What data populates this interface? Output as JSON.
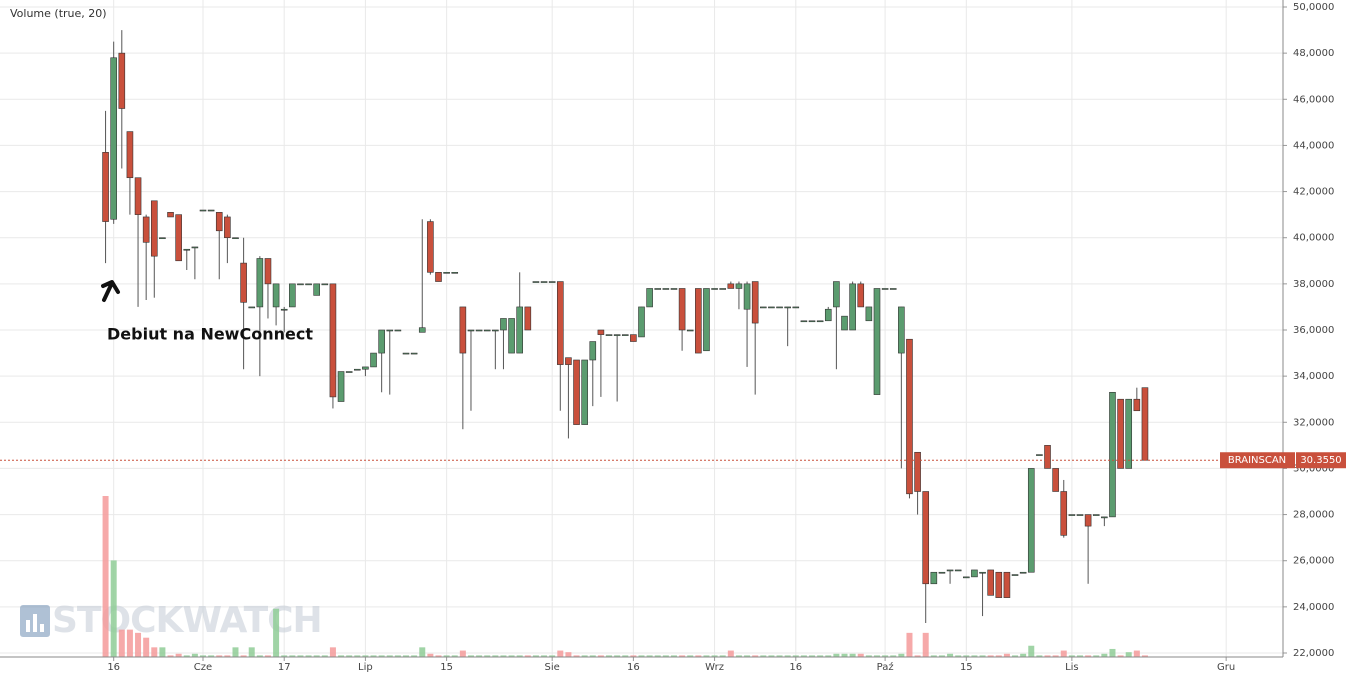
{
  "chart_data": {
    "type": "candlestick",
    "indicator_label": "Volume (true, 20)",
    "annotation": "Debiut na NewConnect",
    "watermark": "STOCKWATCH",
    "price_label": {
      "name": "BRAINSCAN",
      "value": 30.355,
      "label": "30.3550"
    },
    "up_color": "#5b9c6f",
    "down_color": "#c9503c",
    "volume_up_color": "#8fcc97",
    "volume_down_color": "#f59a9a",
    "grid": true,
    "xlim": [
      -13,
      145
    ],
    "ylim": [
      22,
      50
    ],
    "vlim": [
      0,
      100
    ],
    "xticks": [
      {
        "value": 1,
        "label": "16"
      },
      {
        "value": 12,
        "label": "Cze"
      },
      {
        "value": 22,
        "label": "17"
      },
      {
        "value": 32,
        "label": "Lip"
      },
      {
        "value": 42,
        "label": "15"
      },
      {
        "value": 55,
        "label": "Sie"
      },
      {
        "value": 65,
        "label": "16"
      },
      {
        "value": 75,
        "label": "Wrz"
      },
      {
        "value": 85,
        "label": "16"
      },
      {
        "value": 96,
        "label": "Paź"
      },
      {
        "value": 106,
        "label": "15"
      },
      {
        "value": 119,
        "label": "Lis"
      },
      {
        "value": 138,
        "label": "Gru"
      }
    ],
    "yticks": [
      {
        "value": 22,
        "label": "22,0000"
      },
      {
        "value": 24,
        "label": "24,0000"
      },
      {
        "value": 26,
        "label": "26,0000"
      },
      {
        "value": 28,
        "label": "28,0000"
      },
      {
        "value": 30,
        "label": "30,0000"
      },
      {
        "value": 32,
        "label": "32,0000"
      },
      {
        "value": 34,
        "label": "34,0000"
      },
      {
        "value": 36,
        "label": "36,0000"
      },
      {
        "value": 38,
        "label": "38,0000"
      },
      {
        "value": 40,
        "label": "40,0000"
      },
      {
        "value": 42,
        "label": "42,0000"
      },
      {
        "value": 44,
        "label": "44,0000"
      },
      {
        "value": 46,
        "label": "46,0000"
      },
      {
        "value": 48,
        "label": "48,0000"
      },
      {
        "value": 50,
        "label": "50,0000"
      }
    ],
    "x": [
      0,
      1,
      2,
      3,
      4,
      5,
      6,
      7,
      8,
      9,
      10,
      11,
      12,
      13,
      14,
      15,
      16,
      17,
      18,
      19,
      20,
      21,
      22,
      23,
      24,
      25,
      26,
      27,
      28,
      29,
      30,
      31,
      32,
      33,
      34,
      35,
      36,
      37,
      38,
      39,
      40,
      41,
      42,
      43,
      44,
      45,
      46,
      47,
      48,
      49,
      50,
      51,
      52,
      53,
      54,
      55,
      56,
      57,
      58,
      59,
      60,
      61,
      62,
      63,
      64,
      65,
      66,
      67,
      68,
      69,
      70,
      71,
      72,
      73,
      74,
      75,
      76,
      77,
      78,
      79,
      80,
      81,
      82,
      83,
      84,
      85,
      86,
      87,
      88,
      89,
      90,
      91,
      92,
      93,
      94,
      95,
      96,
      97,
      98,
      99,
      100,
      101,
      102,
      103,
      104,
      105,
      106,
      107,
      108,
      109,
      110,
      111,
      112,
      113,
      114,
      115,
      116,
      117,
      118,
      119,
      120,
      121,
      122,
      123,
      124,
      125,
      126,
      127,
      128
    ],
    "open": [
      43.7,
      40.8,
      48.0,
      44.6,
      42.6,
      40.9,
      41.6,
      40,
      41.1,
      41.0,
      39.5,
      39.6,
      41.2,
      41.2,
      41.1,
      40.9,
      40,
      38.9,
      37.0,
      37.0,
      39.1,
      37.0,
      36.9,
      37.0,
      38.0,
      38.0,
      37.5,
      38.0,
      38.0,
      32.9,
      34.2,
      34.3,
      34.3,
      34.4,
      35.0,
      36.0,
      36.0,
      35.0,
      35.0,
      35.9,
      40.7,
      38.5,
      38.5,
      38.5,
      37.0,
      36.0,
      36.0,
      36.0,
      36.0,
      36.0,
      35.0,
      35.0,
      37.0,
      38.1,
      38.1,
      38.1,
      38.1,
      34.8,
      34.7,
      31.9,
      34.7,
      36.0,
      35.8,
      35.8,
      35.8,
      35.8,
      35.7,
      37.0,
      37.8,
      37.8,
      37.8,
      37.8,
      36.0,
      37.8,
      35.1,
      37.8,
      37.8,
      38.0,
      37.8,
      36.9,
      38.1,
      37.0,
      37.0,
      37.0,
      37.0,
      37.0,
      36.4,
      36.4,
      36.4,
      36.4,
      37.0,
      36.0,
      36.0,
      38.0,
      36.4,
      33.2,
      37.8,
      37.8,
      35.0,
      35.6,
      30.7,
      29.0,
      25.0,
      25.5,
      25.6,
      25.6,
      25.3,
      25.3,
      25.5,
      25.6,
      25.5,
      25.5,
      25.4,
      25.5,
      25.5,
      30.6,
      31.0,
      30.0,
      29.0,
      28.0,
      28.0,
      28.0,
      28.0,
      27.9,
      27.9,
      33.0,
      30.0,
      33.0,
      33.5
    ],
    "high": [
      45.5,
      48.5,
      49.0,
      44.6,
      42.6,
      41.0,
      41.6,
      40,
      41.1,
      41.0,
      39.5,
      39.6,
      41.2,
      41.2,
      41.1,
      41.0,
      40,
      40.0,
      37.0,
      39.2,
      39.1,
      38.0,
      37.0,
      38.0,
      38.0,
      38.0,
      38.0,
      38.0,
      38.0,
      34.2,
      34.2,
      34.3,
      34.4,
      35.0,
      36.0,
      36.0,
      36.0,
      35.0,
      35.0,
      40.8,
      40.8,
      38.5,
      38.5,
      38.5,
      37.0,
      36.0,
      36.0,
      36.0,
      36.0,
      36.5,
      36.5,
      38.5,
      37.0,
      38.1,
      38.1,
      38.1,
      38.1,
      34.8,
      34.7,
      34.7,
      35.5,
      36.0,
      35.8,
      35.8,
      35.8,
      35.8,
      37.0,
      37.8,
      37.8,
      37.8,
      37.8,
      37.8,
      36.0,
      37.8,
      37.8,
      37.8,
      37.8,
      38.1,
      38.1,
      38.1,
      38.1,
      37.0,
      37.0,
      37.0,
      37.0,
      37.0,
      36.4,
      36.4,
      36.4,
      37.0,
      38.1,
      36.6,
      38.1,
      38.1,
      37.0,
      37.8,
      37.8,
      37.8,
      37.0,
      35.6,
      30.7,
      29.0,
      25.5,
      25.5,
      25.6,
      25.6,
      25.3,
      25.6,
      25.5,
      25.6,
      25.5,
      25.5,
      25.4,
      25.5,
      30.0,
      30.6,
      31.0,
      30.0,
      29.5,
      28.0,
      28.0,
      28.0,
      28.0,
      27.9,
      33.3,
      33.0,
      33.0,
      33.5,
      33.5
    ],
    "low": [
      38.9,
      40.6,
      43.0,
      41.0,
      37.0,
      37.3,
      37.4,
      40,
      40.9,
      39.0,
      38.6,
      38.2,
      41.2,
      41.2,
      38.2,
      38.9,
      40,
      34.3,
      37.0,
      34.0,
      36.5,
      36.2,
      35.9,
      37.0,
      38.0,
      38.0,
      37.5,
      38.0,
      32.6,
      32.9,
      34.2,
      34.3,
      34.0,
      34.4,
      33.3,
      33.2,
      36.0,
      35.0,
      35.0,
      35.9,
      38.4,
      38.1,
      38.5,
      38.5,
      31.7,
      32.5,
      36.0,
      36.0,
      34.3,
      34.3,
      35.0,
      35.0,
      36.0,
      38.1,
      38.1,
      38.1,
      32.5,
      31.3,
      31.9,
      31.9,
      32.7,
      33.1,
      35.8,
      32.9,
      35.8,
      35.5,
      35.7,
      37.0,
      37.8,
      37.8,
      37.8,
      35.1,
      36.0,
      35.0,
      35.1,
      37.8,
      37.8,
      37.8,
      36.9,
      34.4,
      33.2,
      37.0,
      37.0,
      37.0,
      35.3,
      37.0,
      36.4,
      36.4,
      36.4,
      36.4,
      34.3,
      36.0,
      36.0,
      37.0,
      36.4,
      33.2,
      37.8,
      37.8,
      30.0,
      28.7,
      28.0,
      23.3,
      25.0,
      25.5,
      25.0,
      25.6,
      25.3,
      25.3,
      23.6,
      24.5,
      24.4,
      24.4,
      25.4,
      25.5,
      25.5,
      30.6,
      30.0,
      29.0,
      27.0,
      28.0,
      28.0,
      25.0,
      28.0,
      27.5,
      27.9,
      30.0,
      30.0,
      32.5,
      30.355
    ],
    "close": [
      40.7,
      47.8,
      45.6,
      42.6,
      41.0,
      39.8,
      39.2,
      40,
      40.9,
      39.0,
      39.5,
      39.6,
      41.2,
      41.2,
      40.3,
      40.0,
      40,
      37.2,
      37.0,
      39.1,
      38.0,
      38.0,
      36.9,
      38.0,
      38.0,
      38.0,
      38.0,
      38.0,
      33.1,
      34.2,
      34.2,
      34.3,
      34.4,
      35.0,
      36.0,
      36.0,
      36.0,
      35.0,
      35.0,
      36.1,
      38.5,
      38.1,
      38.5,
      38.5,
      35.0,
      36.0,
      36.0,
      36.0,
      36.0,
      36.5,
      36.5,
      37.0,
      36.0,
      38.1,
      38.1,
      38.1,
      34.5,
      34.5,
      31.9,
      34.7,
      35.5,
      35.8,
      35.8,
      35.8,
      35.8,
      35.5,
      37.0,
      37.8,
      37.8,
      37.8,
      37.8,
      36.0,
      36.0,
      35.0,
      37.8,
      37.8,
      37.8,
      37.8,
      38.0,
      38.0,
      36.3,
      37.0,
      37.0,
      37.0,
      37.0,
      37.0,
      36.4,
      36.4,
      36.4,
      36.9,
      38.1,
      36.6,
      38.0,
      37.0,
      37.0,
      37.8,
      37.8,
      37.8,
      37.0,
      28.9,
      29.0,
      25.0,
      25.5,
      25.5,
      25.6,
      25.6,
      25.3,
      25.6,
      25.5,
      24.5,
      24.4,
      24.4,
      25.4,
      25.5,
      30.0,
      30.6,
      30.0,
      29.0,
      27.1,
      28.0,
      28.0,
      27.5,
      28.0,
      27.9,
      33.3,
      30.0,
      33.0,
      32.5,
      30.355
    ],
    "volume": [
      100,
      60,
      17,
      17,
      15,
      12,
      6,
      6,
      1,
      2,
      1,
      2,
      1,
      1,
      1,
      1,
      6,
      1,
      6,
      1,
      1,
      30,
      1,
      1,
      1,
      1,
      1,
      1,
      6,
      1,
      1,
      1,
      1,
      1,
      1,
      1,
      1,
      1,
      1,
      6,
      2,
      1,
      1,
      1,
      4,
      1,
      1,
      1,
      1,
      1,
      1,
      1,
      1,
      1,
      1,
      1,
      4,
      3,
      1,
      1,
      1,
      1,
      1,
      1,
      1,
      1,
      1,
      1,
      1,
      1,
      1,
      1,
      1,
      1,
      1,
      1,
      1,
      4,
      1,
      1,
      1,
      1,
      1,
      1,
      1,
      1,
      1,
      1,
      1,
      1,
      2,
      2,
      2,
      2,
      1,
      1,
      1,
      1,
      2,
      15,
      1,
      15,
      1,
      1,
      2,
      1,
      1,
      1,
      1,
      1,
      1,
      2,
      1,
      2,
      7,
      1,
      1,
      1,
      4,
      1,
      1,
      1,
      1,
      2,
      5,
      1,
      3,
      4,
      1
    ]
  }
}
